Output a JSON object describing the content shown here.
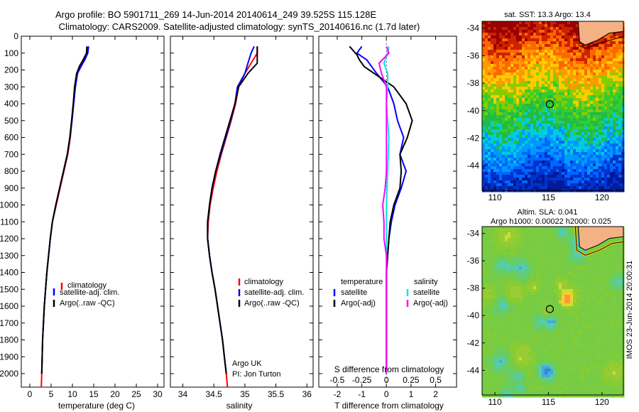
{
  "header": {
    "title_line1": "Argo profile: BO 5901711_269 14-Jun-2014 20140614_249 39.525S 115.128E",
    "title_line2": "Climatology: CARS2009. Satellite-adjusted climatology: synTS_20140616.nc (1.7d later)"
  },
  "colors": {
    "climatology": "#ff0000",
    "satellite": "#0000ff",
    "argo": "#000000",
    "sal_satellite": "#00e5e5",
    "sal_argo": "#ff00ff"
  },
  "depth_axis": {
    "ticks": [
      0,
      100,
      200,
      300,
      400,
      500,
      600,
      700,
      800,
      900,
      1000,
      1100,
      1200,
      1300,
      1400,
      1500,
      1600,
      1700,
      1800,
      1900,
      2000
    ],
    "ylim": [
      0,
      2080
    ]
  },
  "legend_profile": {
    "climatology": "climatology",
    "satellite": "satellite-adj. clim.",
    "argo": "Argo(..raw -QC)"
  },
  "legend_diff": {
    "temp_header": "temperature",
    "temp_satellite": "satellite",
    "temp_argo": "Argo(-adj)",
    "sal_header": "salinity",
    "sal_satellite": "satellite",
    "sal_argo": "Argo(-adj)"
  },
  "credit": {
    "line1": "Argo UK",
    "line2": "PI: Jon Turton"
  },
  "maps": {
    "sst_title": "sat. SST: 13.3 Argo: 13.4",
    "sla_title1": "Altim. SLA: 0.041",
    "sla_title2": "Argo h1000: 0.00022 h2000: 0.025",
    "lat_ticks": [
      -34,
      -36,
      -38,
      -40,
      -42,
      -44
    ],
    "lon_ticks": [
      110,
      115,
      120
    ],
    "lat_range": [
      -33.5,
      -45.8
    ],
    "lon_range": [
      108.8,
      122
    ],
    "float_lon": 115.128,
    "float_lat": -39.525
  },
  "side_stamp": "IMOS 23-Jun-2014 20:00:31",
  "chart_data": [
    {
      "type": "line",
      "name": "temperature profile",
      "xlabel": "temperature (deg C)",
      "xticks": [
        0,
        5,
        10,
        15,
        20,
        25,
        30
      ],
      "xlim": [
        -2,
        31.5
      ],
      "ylim": [
        0,
        2080
      ],
      "y_inverted": true,
      "series": [
        {
          "name": "climatology",
          "color": "#ff0000",
          "points": [
            [
              13.6,
              60
            ],
            [
              13.5,
              100
            ],
            [
              12.7,
              140
            ],
            [
              12.0,
              180
            ],
            [
              11.0,
              220
            ],
            [
              10.6,
              300
            ],
            [
              10.2,
              400
            ],
            [
              9.9,
              500
            ],
            [
              9.5,
              600
            ],
            [
              8.9,
              700
            ],
            [
              8.0,
              800
            ],
            [
              7.1,
              900
            ],
            [
              6.2,
              1000
            ],
            [
              5.3,
              1100
            ],
            [
              4.8,
              1200
            ],
            [
              4.4,
              1300
            ],
            [
              4.0,
              1400
            ],
            [
              3.7,
              1500
            ],
            [
              3.4,
              1600
            ],
            [
              3.2,
              1700
            ],
            [
              3.0,
              1800
            ],
            [
              2.9,
              1900
            ],
            [
              2.8,
              2000
            ],
            [
              2.7,
              2080
            ]
          ]
        },
        {
          "name": "satellite-adj. clim.",
          "color": "#0000ff",
          "points": [
            [
              13.8,
              60
            ],
            [
              13.6,
              100
            ],
            [
              12.9,
              140
            ],
            [
              12.0,
              180
            ],
            [
              11.2,
              220
            ],
            [
              10.7,
              300
            ],
            [
              10.3,
              400
            ],
            [
              9.9,
              500
            ],
            [
              9.4,
              600
            ],
            [
              8.8,
              700
            ],
            [
              7.9,
              800
            ],
            [
              7.0,
              900
            ],
            [
              6.1,
              1000
            ],
            [
              5.3,
              1100
            ],
            [
              4.8,
              1200
            ],
            [
              4.4,
              1300
            ],
            [
              4.0,
              1400
            ],
            [
              3.7,
              1500
            ],
            [
              3.4,
              1600
            ],
            [
              3.2,
              1700
            ],
            [
              3.0,
              1800
            ],
            [
              2.9,
              1900
            ],
            [
              2.8,
              2000
            ]
          ]
        },
        {
          "name": "Argo(..raw -QC)",
          "color": "#000000",
          "points": [
            [
              13.4,
              60
            ],
            [
              13.3,
              100
            ],
            [
              12.5,
              140
            ],
            [
              11.6,
              180
            ],
            [
              11.0,
              220
            ],
            [
              10.5,
              300
            ],
            [
              10.2,
              400
            ],
            [
              9.8,
              500
            ],
            [
              9.4,
              600
            ],
            [
              8.8,
              700
            ],
            [
              7.9,
              800
            ],
            [
              7.0,
              900
            ],
            [
              6.1,
              1000
            ],
            [
              5.3,
              1100
            ],
            [
              4.8,
              1200
            ],
            [
              4.4,
              1300
            ],
            [
              4.0,
              1400
            ],
            [
              3.7,
              1500
            ],
            [
              3.4,
              1600
            ],
            [
              3.2,
              1700
            ],
            [
              3.0,
              1800
            ],
            [
              2.9,
              1900
            ],
            [
              2.8,
              2000
            ]
          ]
        }
      ]
    },
    {
      "type": "line",
      "name": "salinity profile",
      "xlabel": "salinity",
      "xticks": [
        34,
        34.5,
        35,
        35.5,
        36
      ],
      "xlim": [
        33.8,
        36.1
      ],
      "ylim": [
        0,
        2080
      ],
      "y_inverted": true,
      "series": [
        {
          "name": "climatology",
          "color": "#ff0000",
          "points": [
            [
              35.2,
              60
            ],
            [
              35.2,
              100
            ],
            [
              35.1,
              160
            ],
            [
              35.0,
              220
            ],
            [
              34.9,
              300
            ],
            [
              34.85,
              400
            ],
            [
              34.78,
              500
            ],
            [
              34.7,
              600
            ],
            [
              34.62,
              700
            ],
            [
              34.55,
              800
            ],
            [
              34.49,
              900
            ],
            [
              34.44,
              1000
            ],
            [
              34.41,
              1100
            ],
            [
              34.4,
              1200
            ],
            [
              34.43,
              1300
            ],
            [
              34.47,
              1400
            ],
            [
              34.52,
              1500
            ],
            [
              34.56,
              1600
            ],
            [
              34.6,
              1700
            ],
            [
              34.64,
              1800
            ],
            [
              34.67,
              1900
            ],
            [
              34.7,
              2000
            ],
            [
              34.72,
              2080
            ]
          ]
        },
        {
          "name": "satellite-adj. clim.",
          "color": "#0000ff",
          "points": [
            [
              35.15,
              60
            ],
            [
              35.1,
              100
            ],
            [
              35.05,
              160
            ],
            [
              35.0,
              220
            ],
            [
              34.88,
              300
            ],
            [
              34.84,
              400
            ],
            [
              34.77,
              500
            ],
            [
              34.69,
              600
            ],
            [
              34.61,
              700
            ],
            [
              34.53,
              800
            ],
            [
              34.47,
              900
            ],
            [
              34.43,
              1000
            ],
            [
              34.4,
              1100
            ],
            [
              34.4,
              1200
            ],
            [
              34.43,
              1300
            ],
            [
              34.47,
              1400
            ],
            [
              34.52,
              1500
            ],
            [
              34.56,
              1600
            ],
            [
              34.6,
              1700
            ],
            [
              34.64,
              1800
            ],
            [
              34.67,
              1900
            ],
            [
              34.7,
              2000
            ]
          ]
        },
        {
          "name": "Argo(..raw -QC)",
          "color": "#000000",
          "points": [
            [
              35.2,
              60
            ],
            [
              35.2,
              100
            ],
            [
              35.2,
              160
            ],
            [
              35.05,
              220
            ],
            [
              34.9,
              300
            ],
            [
              34.84,
              400
            ],
            [
              34.76,
              500
            ],
            [
              34.68,
              600
            ],
            [
              34.6,
              700
            ],
            [
              34.53,
              800
            ],
            [
              34.47,
              900
            ],
            [
              34.43,
              1000
            ],
            [
              34.4,
              1100
            ],
            [
              34.4,
              1200
            ],
            [
              34.43,
              1300
            ],
            [
              34.47,
              1400
            ],
            [
              34.52,
              1500
            ],
            [
              34.56,
              1600
            ],
            [
              34.6,
              1700
            ],
            [
              34.64,
              1800
            ],
            [
              34.67,
              1900
            ],
            [
              34.7,
              2000
            ]
          ]
        }
      ]
    },
    {
      "type": "line",
      "name": "difference from climatology",
      "xlabel_top": "S difference from climatology",
      "xlabel": "T difference from climatology",
      "xticks_T": [
        -2,
        -1,
        0,
        1,
        2
      ],
      "xticks_S": [
        -0.5,
        -0.25,
        0,
        0.25,
        0.5
      ],
      "xlim": [
        -2.75,
        2.85
      ],
      "ylim": [
        0,
        2080
      ],
      "y_inverted": true,
      "series": [
        {
          "name": "temperature satellite",
          "color": "#0000ff",
          "points": [
            [
              -1.0,
              60
            ],
            [
              -1.2,
              100
            ],
            [
              -0.8,
              140
            ],
            [
              -0.6,
              180
            ],
            [
              -0.4,
              220
            ],
            [
              0.05,
              300
            ],
            [
              0.3,
              400
            ],
            [
              0.45,
              500
            ],
            [
              0.7,
              600
            ],
            [
              0.55,
              700
            ],
            [
              0.8,
              800
            ],
            [
              0.6,
              900
            ],
            [
              0.35,
              1000
            ],
            [
              0.2,
              1100
            ],
            [
              0.1,
              1200
            ],
            [
              0.05,
              1300
            ],
            [
              0.0,
              1400
            ],
            [
              0.0,
              1600
            ],
            [
              0.0,
              2000
            ]
          ]
        },
        {
          "name": "temperature Argo(-adj)",
          "color": "#000000",
          "points": [
            [
              -1.5,
              60
            ],
            [
              -1.2,
              110
            ],
            [
              -1.1,
              140
            ],
            [
              -0.9,
              180
            ],
            [
              -0.5,
              220
            ],
            [
              0.3,
              300
            ],
            [
              0.8,
              400
            ],
            [
              1.05,
              500
            ],
            [
              0.85,
              600
            ],
            [
              0.55,
              700
            ],
            [
              0.6,
              800
            ],
            [
              0.55,
              900
            ],
            [
              0.3,
              1000
            ],
            [
              0.15,
              1100
            ],
            [
              0.1,
              1200
            ],
            [
              0.05,
              1300
            ],
            [
              0.0,
              1400
            ],
            [
              0.0,
              2000
            ]
          ]
        },
        {
          "name": "salinity satellite",
          "color": "#00e5e5",
          "points": [
            [
              0.1,
              60
            ],
            [
              0.05,
              100
            ],
            [
              -0.1,
              160
            ],
            [
              0.05,
              220
            ],
            [
              0.05,
              300
            ],
            [
              0.0,
              400
            ],
            [
              0.1,
              600
            ],
            [
              0.05,
              800
            ],
            [
              0.0,
              1000
            ],
            [
              0.0,
              1400
            ],
            [
              0.0,
              2000
            ]
          ]
        },
        {
          "name": "salinity Argo(-adj)",
          "color": "#ff00ff",
          "points": [
            [
              0.0,
              60
            ],
            [
              0.1,
              100
            ],
            [
              -0.3,
              160
            ],
            [
              -0.2,
              220
            ],
            [
              0.0,
              300
            ],
            [
              0.0,
              600
            ],
            [
              0.0,
              800
            ],
            [
              -0.05,
              900
            ],
            [
              -0.15,
              1000
            ],
            [
              -0.1,
              1100
            ],
            [
              -0.1,
              1200
            ],
            [
              0.0,
              1300
            ],
            [
              0.0,
              2000
            ]
          ]
        }
      ]
    }
  ]
}
